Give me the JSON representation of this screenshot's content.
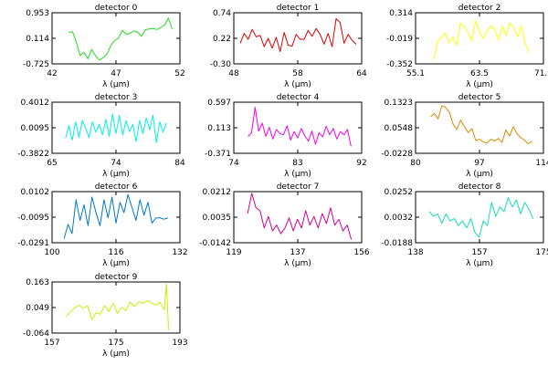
{
  "chart_data": [
    {
      "type": "line",
      "title": "detector 0",
      "xlabel": "λ (μm)",
      "xlim": [
        42,
        52
      ],
      "ylim": [
        -0.725,
        0.953
      ],
      "xticks": [
        "42",
        "47",
        "52"
      ],
      "yticks": [
        "0.953",
        "0.114",
        "-0.725"
      ],
      "color": "#22dd22",
      "series": [
        {
          "x": [
            43.3,
            43.6,
            43.9,
            44.2,
            44.5,
            44.8,
            45.1,
            45.4,
            45.7,
            46.0,
            46.3,
            46.6,
            46.9,
            47.2,
            47.5,
            47.8,
            48.1,
            48.4,
            48.7,
            49.0,
            49.3,
            49.6,
            49.9,
            50.2,
            50.5,
            50.8,
            51.1,
            51.4
          ],
          "y": [
            0.31,
            0.33,
            -0.02,
            -0.45,
            -0.35,
            -0.56,
            -0.25,
            -0.46,
            -0.6,
            -0.52,
            -0.4,
            -0.12,
            0.04,
            0.12,
            0.38,
            0.24,
            0.28,
            0.36,
            0.32,
            0.18,
            0.4,
            0.42,
            0.44,
            0.4,
            0.47,
            0.55,
            0.78,
            0.41
          ]
        }
      ]
    },
    {
      "type": "line",
      "title": "detector 1",
      "xlabel": "λ (μm)",
      "xlim": [
        48,
        64
      ],
      "ylim": [
        -0.3,
        0.74
      ],
      "xticks": [
        "48",
        "58",
        "64"
      ],
      "yticks": [
        "0.74",
        "0.22",
        "-0.30"
      ],
      "color": "#dd0000",
      "series": [
        {
          "x": [
            48.8,
            49.3,
            49.8,
            50.3,
            50.8,
            51.3,
            51.8,
            52.3,
            52.8,
            53.3,
            53.8,
            54.3,
            54.8,
            55.3,
            55.8,
            56.3,
            56.8,
            57.3,
            57.8,
            58.3,
            58.8,
            59.3,
            59.8,
            60.3,
            60.8,
            61.3,
            61.8,
            62.3,
            62.8,
            63.3
          ],
          "y": [
            0.12,
            0.32,
            0.2,
            0.4,
            0.25,
            0.28,
            0.05,
            0.22,
            0.02,
            0.24,
            -0.05,
            0.34,
            0.08,
            0.06,
            0.3,
            0.2,
            0.2,
            0.38,
            0.26,
            0.42,
            0.3,
            0.1,
            0.32,
            0.05,
            0.62,
            0.54,
            0.12,
            0.3,
            0.18,
            0.1
          ]
        }
      ]
    },
    {
      "type": "line",
      "title": "detector 2",
      "xlabel": "λ (μm)",
      "xlim": [
        55.1,
        71.9
      ],
      "ylim": [
        -0.352,
        0.314
      ],
      "xticks": [
        "55.1",
        "63.5",
        "71.9"
      ],
      "yticks": [
        "0.314",
        "-0.019",
        "-0.352"
      ],
      "color": "#ffff00",
      "series": [
        {
          "x": [
            57.5,
            58.0,
            58.5,
            59.0,
            59.5,
            60.0,
            60.5,
            61.0,
            61.5,
            62.0,
            62.5,
            63.0,
            63.5,
            64.0,
            64.5,
            65.0,
            65.5,
            66.0,
            66.5,
            67.0,
            67.5,
            68.0,
            68.5,
            69.0,
            69.5,
            70.0
          ],
          "y": [
            -0.3,
            -0.05,
            -0.01,
            0.05,
            -0.08,
            0.0,
            -0.11,
            0.18,
            0.14,
            0.05,
            -0.05,
            0.21,
            0.06,
            -0.02,
            0.08,
            0.14,
            0.1,
            -0.04,
            0.14,
            0.02,
            0.18,
            0.12,
            0.0,
            0.14,
            -0.08,
            -0.2
          ]
        }
      ]
    },
    {
      "type": "line",
      "title": "detector 3",
      "xlabel": "λ (μm)",
      "xlim": [
        65,
        84
      ],
      "ylim": [
        -0.3822,
        0.4012
      ],
      "xticks": [
        "65",
        "74",
        "84"
      ],
      "yticks": [
        "0.4012",
        "0.0095",
        "-0.3822"
      ],
      "color": "#00eeee",
      "series": [
        {
          "x": [
            67.0,
            67.5,
            68.0,
            68.5,
            69.0,
            69.5,
            70.0,
            70.5,
            71.0,
            71.5,
            72.0,
            72.5,
            73.0,
            73.5,
            74.0,
            74.5,
            75.0,
            75.5,
            76.0,
            76.5,
            77.0,
            77.5,
            78.0,
            78.5,
            79.0,
            79.5,
            80.0,
            80.5,
            81.0,
            81.5,
            82.0
          ],
          "y": [
            -0.15,
            0.04,
            -0.18,
            0.1,
            -0.14,
            0.12,
            0.0,
            -0.14,
            0.1,
            -0.06,
            0.06,
            -0.1,
            0.14,
            -0.12,
            0.22,
            -0.08,
            0.2,
            -0.1,
            0.12,
            -0.05,
            0.06,
            -0.2,
            0.12,
            -0.08,
            0.16,
            -0.02,
            0.2,
            -0.22,
            0.1,
            -0.06,
            0.08
          ]
        }
      ]
    },
    {
      "type": "line",
      "title": "detector 4",
      "xlabel": "λ (μm)",
      "xlim": [
        74,
        92
      ],
      "ylim": [
        -0.371,
        0.597
      ],
      "xticks": [
        "74",
        "83",
        "92"
      ],
      "yticks": [
        "0.597",
        "0.113",
        "-0.371"
      ],
      "color": "#ee00ee",
      "series": [
        {
          "x": [
            76.0,
            76.5,
            77.0,
            77.5,
            78.0,
            78.5,
            79.0,
            79.5,
            80.0,
            80.5,
            81.0,
            81.5,
            82.0,
            82.5,
            83.0,
            83.5,
            84.0,
            84.5,
            85.0,
            85.5,
            86.0,
            86.5,
            87.0,
            87.5,
            88.0,
            88.5,
            89.0,
            89.5,
            90.0,
            90.5
          ],
          "y": [
            -0.05,
            0.02,
            0.5,
            0.05,
            0.2,
            -0.05,
            0.12,
            -0.1,
            0.08,
            0.0,
            -0.02,
            0.15,
            -0.12,
            0.04,
            -0.08,
            0.1,
            -0.04,
            -0.14,
            0.05,
            -0.2,
            0.02,
            -0.06,
            0.14,
            -0.02,
            0.1,
            -0.1,
            0.04,
            -0.02,
            0.08,
            -0.24
          ]
        }
      ]
    },
    {
      "type": "line",
      "title": "detector 5",
      "xlabel": "λ (μm)",
      "xlim": [
        80,
        114
      ],
      "ylim": [
        -0.0228,
        0.1323
      ],
      "xticks": [
        "80",
        "97",
        "114"
      ],
      "yticks": [
        "0.1323",
        "0.0548",
        "-0.0228"
      ],
      "color": "#dd8800",
      "series": [
        {
          "x": [
            84.0,
            85.0,
            86.0,
            87.0,
            88.0,
            89.0,
            90.0,
            91.0,
            92.0,
            93.0,
            94.0,
            95.0,
            96.0,
            97.0,
            98.0,
            99.0,
            100.0,
            101.0,
            102.0,
            103.0,
            104.0,
            105.0,
            106.0,
            107.0,
            108.0,
            109.0,
            110.0,
            111.0
          ],
          "y": [
            0.088,
            0.098,
            0.082,
            0.122,
            0.116,
            0.102,
            0.065,
            0.05,
            0.078,
            0.058,
            0.04,
            0.052,
            0.016,
            0.02,
            0.012,
            0.008,
            0.02,
            0.014,
            0.022,
            0.01,
            0.048,
            0.03,
            0.058,
            0.036,
            0.025,
            0.016,
            0.006,
            0.014
          ]
        }
      ]
    },
    {
      "type": "line",
      "title": "detector 6",
      "xlabel": "λ (μm)",
      "xlim": [
        100,
        132
      ],
      "ylim": [
        -0.0291,
        0.0102
      ],
      "xticks": [
        "100",
        "116",
        "132"
      ],
      "yticks": [
        "0.0102",
        "-0.0095",
        "-0.0291"
      ],
      "color": "#0077cc",
      "series": [
        {
          "x": [
            103.0,
            104.0,
            105.0,
            106.0,
            107.0,
            108.0,
            109.0,
            110.0,
            111.0,
            112.0,
            113.0,
            114.0,
            115.0,
            116.0,
            117.0,
            118.0,
            119.0,
            120.0,
            121.0,
            122.0,
            123.0,
            124.0,
            125.0,
            126.0,
            127.0,
            128.0,
            129.0
          ],
          "y": [
            -0.026,
            -0.015,
            -0.022,
            0.004,
            -0.012,
            0.0,
            -0.016,
            0.006,
            -0.006,
            -0.016,
            0.004,
            -0.01,
            0.006,
            -0.014,
            0.002,
            -0.006,
            0.008,
            -0.002,
            -0.012,
            0.004,
            -0.008,
            0.002,
            -0.014,
            -0.01,
            -0.01,
            -0.011,
            -0.01
          ]
        }
      ]
    },
    {
      "type": "line",
      "title": "detector 7",
      "xlabel": "λ (μm)",
      "xlim": [
        119,
        156
      ],
      "ylim": [
        -0.0142,
        0.0212
      ],
      "xticks": [
        "119",
        "137",
        "156"
      ],
      "yticks": [
        "0.0212",
        "0.0035",
        "-0.0142"
      ],
      "color": "#cc0099",
      "series": [
        {
          "x": [
            123.0,
            124.2,
            125.4,
            126.6,
            127.8,
            129.0,
            130.2,
            131.4,
            132.6,
            133.8,
            135.0,
            136.2,
            137.4,
            138.6,
            139.8,
            141.0,
            142.2,
            143.4,
            144.6,
            145.8,
            147.0,
            148.2,
            149.4,
            150.6,
            151.8,
            153.0
          ],
          "y": [
            0.006,
            0.02,
            0.01,
            0.008,
            -0.004,
            0.004,
            -0.006,
            -0.002,
            -0.008,
            -0.004,
            0.003,
            -0.006,
            0.002,
            -0.004,
            0.008,
            -0.002,
            0.004,
            -0.004,
            0.006,
            -0.001,
            0.01,
            -0.002,
            0.002,
            -0.006,
            -0.002,
            -0.012
          ]
        }
      ]
    },
    {
      "type": "line",
      "title": "detector 8",
      "xlabel": "λ (μm)",
      "xlim": [
        138,
        175
      ],
      "ylim": [
        -0.0188,
        0.0252
      ],
      "xticks": [
        "138",
        "157",
        "175"
      ],
      "yticks": [
        "0.0252",
        "0.0032",
        "-0.0188"
      ],
      "color": "#11ddbb",
      "series": [
        {
          "x": [
            142.0,
            143.2,
            144.4,
            145.6,
            146.8,
            148.0,
            149.2,
            150.4,
            151.6,
            152.8,
            154.0,
            155.2,
            156.4,
            157.6,
            158.8,
            160.0,
            161.2,
            162.4,
            163.6,
            164.8,
            166.0,
            167.2,
            168.4,
            169.6,
            170.8,
            172.0
          ],
          "y": [
            0.008,
            0.004,
            0.006,
            -0.002,
            0.006,
            0.0,
            0.002,
            -0.004,
            0.0,
            -0.006,
            0.002,
            -0.01,
            -0.014,
            0.0,
            -0.004,
            0.016,
            0.004,
            0.012,
            0.008,
            0.02,
            0.012,
            0.018,
            0.006,
            0.016,
            0.01,
            0.002
          ]
        }
      ]
    },
    {
      "type": "line",
      "title": "detector 9",
      "xlabel": "λ (μm)",
      "xlim": [
        157,
        193
      ],
      "ylim": [
        -0.064,
        0.163
      ],
      "xticks": [
        "157",
        "175",
        "193"
      ],
      "yticks": [
        "0.163",
        "0.049",
        "-0.064"
      ],
      "color": "#ccee00",
      "series": [
        {
          "x": [
            161.0,
            162.2,
            163.4,
            164.6,
            165.8,
            167.0,
            168.2,
            169.4,
            170.6,
            171.8,
            173.0,
            174.2,
            175.4,
            176.6,
            177.8,
            179.0,
            180.2,
            181.4,
            182.6,
            183.8,
            185.0,
            186.2,
            187.4,
            188.6,
            189.2,
            189.8
          ],
          "y": [
            0.01,
            0.03,
            0.048,
            0.06,
            0.046,
            0.058,
            -0.004,
            0.026,
            0.02,
            0.058,
            0.032,
            0.068,
            0.024,
            0.05,
            0.036,
            0.074,
            0.054,
            0.074,
            0.068,
            0.08,
            0.07,
            0.06,
            0.072,
            0.04,
            0.155,
            -0.05
          ]
        }
      ]
    }
  ]
}
